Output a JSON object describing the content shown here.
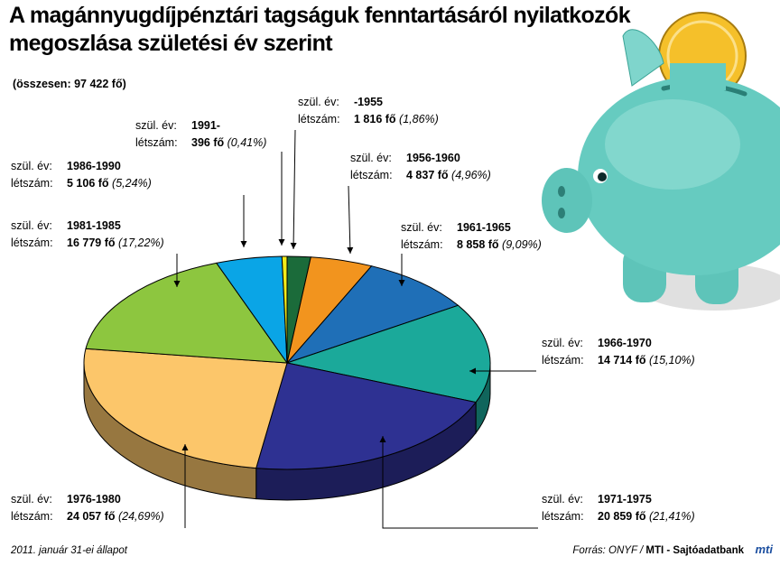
{
  "title": "A magánnyugdíjpénztári tagságuk fenntartásáról nyilatkozók megoszlása születési év szerint",
  "subtitle": "(összesen: 97 422 fő)",
  "labels": {
    "year": "szül. év:",
    "count": "létszám:"
  },
  "footer": {
    "date_note": "2011. január 31-ei állapot",
    "source_label": "Forrás:",
    "source_value": "ONYF /",
    "agency": "MTI - Sajtóadatbank",
    "logo_text": "mti"
  },
  "chart_data": {
    "type": "pie",
    "style": "3d",
    "total": 97422,
    "slices": [
      {
        "years": "-1955",
        "count": 1816,
        "count_text": "1 816 fő",
        "percent": 1.86,
        "percent_text": "(1,86%)",
        "color": "#1b6b3a"
      },
      {
        "years": "1956-1960",
        "count": 4837,
        "count_text": "4 837 fő",
        "percent": 4.96,
        "percent_text": "(4,96%)",
        "color": "#f2941e"
      },
      {
        "years": "1961-1965",
        "count": 8858,
        "count_text": "8 858 fő",
        "percent": 9.09,
        "percent_text": "(9,09%)",
        "color": "#1f6fb7"
      },
      {
        "years": "1966-1970",
        "count": 14714,
        "count_text": "14 714 fő",
        "percent": 15.1,
        "percent_text": "(15,10%)",
        "color": "#1ba99a"
      },
      {
        "years": "1971-1975",
        "count": 20859,
        "count_text": "20 859 fő",
        "percent": 21.41,
        "percent_text": "(21,41%)",
        "color": "#2e3192"
      },
      {
        "years": "1976-1980",
        "count": 24057,
        "count_text": "24 057 fő",
        "percent": 24.69,
        "percent_text": "(24,69%)",
        "color": "#fcc66a"
      },
      {
        "years": "1981-1985",
        "count": 16779,
        "count_text": "16 779 fő",
        "percent": 17.22,
        "percent_text": "(17,22%)",
        "color": "#8dc63f"
      },
      {
        "years": "1986-1990",
        "count": 5106,
        "count_text": "5 106 fő",
        "percent": 5.24,
        "percent_text": "(5,24%)",
        "color": "#0aa5e6"
      },
      {
        "years": "1991-",
        "count": 396,
        "count_text": "396 fő",
        "percent": 0.41,
        "percent_text": "(0,41%)",
        "color": "#f3ec19"
      }
    ]
  }
}
